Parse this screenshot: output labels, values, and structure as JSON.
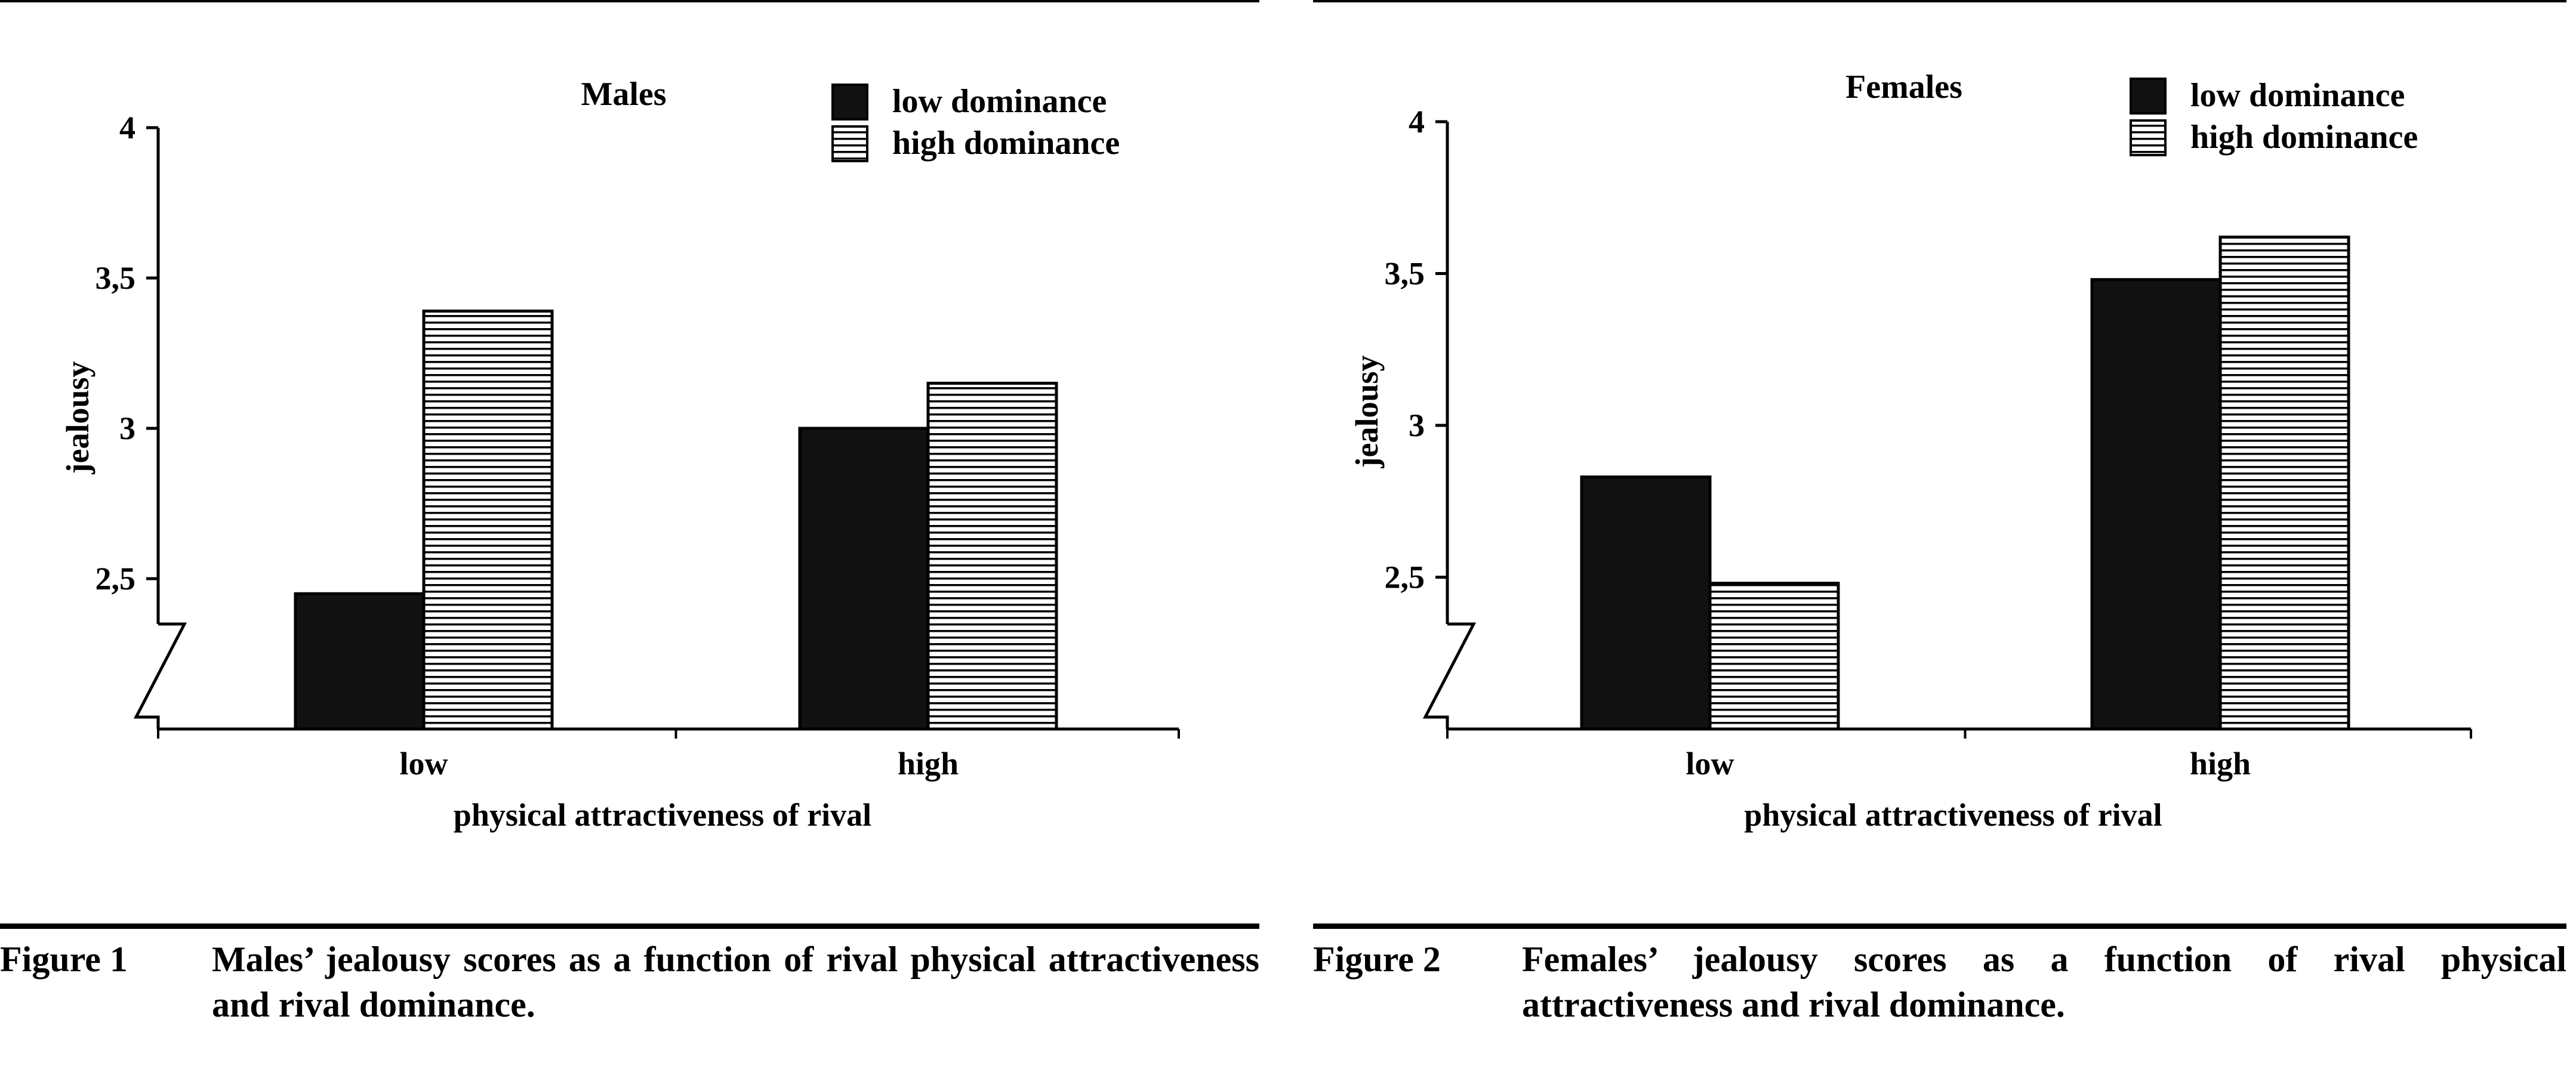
{
  "figures": [
    {
      "caption_number": "Figure 1",
      "caption_text": "Males’ jealousy scores as a function of rival physical attractiveness and rival dominance."
    },
    {
      "caption_number": "Figure 2",
      "caption_text": "Females’ jealousy scores as a function of rival physical attractiveness and rival dominance."
    }
  ],
  "chart_data": [
    {
      "type": "bar",
      "title": "Males",
      "xlabel": "physical attractiveness of rival",
      "ylabel": "jealousy",
      "categories": [
        "low",
        "high"
      ],
      "series": [
        {
          "name": "low dominance",
          "values": [
            2.45,
            3.0
          ],
          "pattern": "solid",
          "color": "#111111"
        },
        {
          "name": "high dominance",
          "values": [
            3.39,
            3.15
          ],
          "pattern": "horizontal-stripes",
          "color": "#000000"
        }
      ],
      "ylim": [
        2.0,
        4.0
      ],
      "yticks": [
        2.5,
        3,
        3.5,
        4
      ],
      "ytick_labels": [
        "2,5",
        "3",
        "3,5",
        "4"
      ],
      "axis_break": true,
      "legend_position": "top-right",
      "grid": false
    },
    {
      "type": "bar",
      "title": "Females",
      "xlabel": "physical attractiveness of rival",
      "ylabel": "jealousy",
      "categories": [
        "low",
        "high"
      ],
      "series": [
        {
          "name": "low dominance",
          "values": [
            2.83,
            3.48
          ],
          "pattern": "solid",
          "color": "#111111"
        },
        {
          "name": "high dominance",
          "values": [
            2.48,
            3.62
          ],
          "pattern": "horizontal-stripes",
          "color": "#000000"
        }
      ],
      "ylim": [
        2.0,
        4.0
      ],
      "yticks": [
        2.5,
        3,
        3.5,
        4
      ],
      "ytick_labels": [
        "2,5",
        "3",
        "3,5",
        "4"
      ],
      "axis_break": true,
      "legend_position": "top-right",
      "grid": false
    }
  ]
}
